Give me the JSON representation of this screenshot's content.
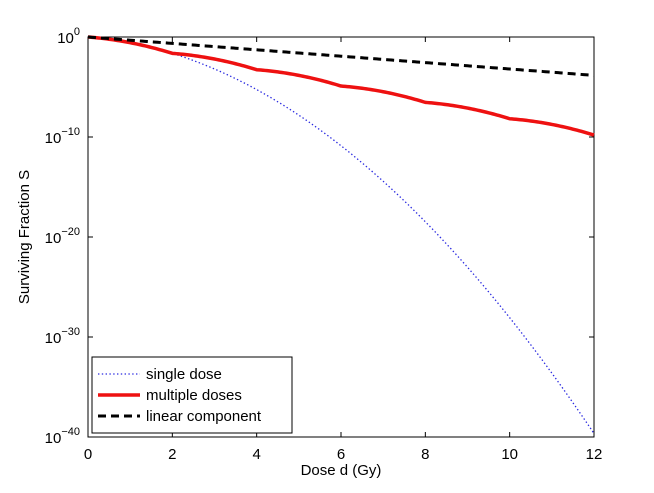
{
  "chart_data": {
    "type": "line",
    "title": "",
    "xlabel": "Dose d (Gy)",
    "ylabel": "Surviving Fraction S",
    "xlim": [
      0,
      12
    ],
    "ylim_log10": [
      -40,
      0
    ],
    "yscale": "log",
    "grid": false,
    "x_ticks": [
      0,
      2,
      4,
      6,
      8,
      10,
      12
    ],
    "x_tick_labels": [
      "0",
      "2",
      "4",
      "6",
      "8",
      "10",
      "12"
    ],
    "y_ticks_log10": [
      0,
      -10,
      -20,
      -30,
      -40
    ],
    "y_tick_labels": [
      {
        "base": "10",
        "exp": "0"
      },
      {
        "base": "10",
        "exp": "−10"
      },
      {
        "base": "10",
        "exp": "−20"
      },
      {
        "base": "10",
        "exp": "−30"
      },
      {
        "base": "10",
        "exp": "−40"
      }
    ],
    "legend_position": "bottom-left",
    "series": [
      {
        "name": "single dose",
        "style": "dotted",
        "color": "#2a2ae0",
        "model": "linear-quadratic",
        "alpha_log10_per_Gy": 0.32,
        "beta_log10_per_Gy2": 0.2487
      },
      {
        "name": "multiple doses",
        "style": "solid",
        "color": "#ee1111",
        "model": "fractionated linear-quadratic, fraction size 2 Gy",
        "alpha_log10_per_Gy": 0.32,
        "beta_log10_per_Gy2": 0.2487,
        "fraction_size_Gy": 2
      },
      {
        "name": "linear component",
        "style": "dashed",
        "color": "#000000",
        "model": "linear",
        "alpha_log10_per_Gy": 0.32
      }
    ]
  }
}
